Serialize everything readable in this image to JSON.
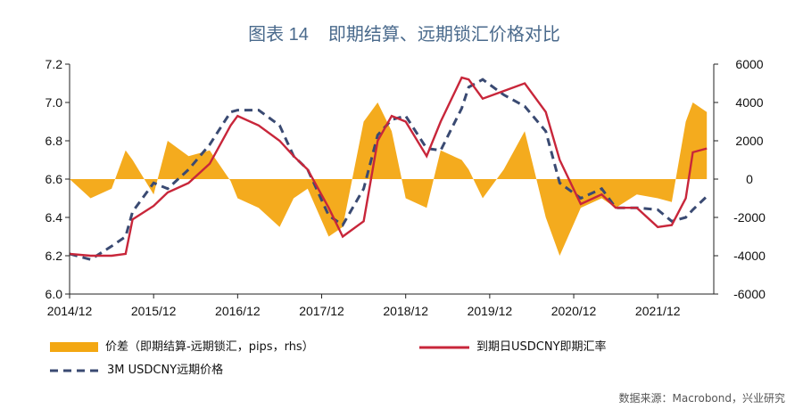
{
  "title": {
    "figure_label": "图表 14",
    "text": "即期结算、远期锁汇价格对比"
  },
  "legend": {
    "bar": "价差（即期结算-远期锁汇，pips，rhs）",
    "spot": "到期日USDCNY即期汇率",
    "forward": "3M USDCNY远期价格"
  },
  "source": "数据来源：Macrobond，兴业研究",
  "colors": {
    "bar": "#f3a712",
    "spot": "#c8263a",
    "forward": "#3a4a72",
    "axis": "#222222"
  },
  "chart_data": {
    "type": "line",
    "x_ticks": [
      "2014/12",
      "2015/12",
      "2016/12",
      "2017/12",
      "2018/12",
      "2019/12",
      "2020/12",
      "2021/12"
    ],
    "y_left": {
      "ticks": [
        "6.0",
        "6.2",
        "6.4",
        "6.6",
        "6.8",
        "7.0",
        "7.2"
      ],
      "ylim": [
        6.0,
        7.2
      ]
    },
    "y_right": {
      "ticks": [
        "-6000",
        "-4000",
        "-2000",
        "0",
        "2000",
        "4000",
        "6000"
      ],
      "ylim": [
        -6000,
        6000
      ]
    },
    "series": [
      {
        "name": "到期日USDCNY即期汇率",
        "axis": "left",
        "x": [
          "2014-12",
          "2015-03",
          "2015-06",
          "2015-08",
          "2015-09",
          "2015-12",
          "2016-02",
          "2016-05",
          "2016-08",
          "2016-11",
          "2016-12",
          "2017-03",
          "2017-06",
          "2017-08",
          "2017-10",
          "2018-01",
          "2018-03",
          "2018-06",
          "2018-08",
          "2018-10",
          "2018-12",
          "2019-03",
          "2019-05",
          "2019-08",
          "2019-09",
          "2019-11",
          "2020-02",
          "2020-05",
          "2020-08",
          "2020-10",
          "2021-01",
          "2021-04",
          "2021-06",
          "2021-09",
          "2021-12",
          "2022-02",
          "2022-04",
          "2022-05",
          "2022-07"
        ],
        "values": [
          6.21,
          6.2,
          6.2,
          6.21,
          6.39,
          6.46,
          6.53,
          6.58,
          6.68,
          6.88,
          6.93,
          6.88,
          6.8,
          6.72,
          6.65,
          6.45,
          6.3,
          6.38,
          6.8,
          6.93,
          6.9,
          6.72,
          6.9,
          7.13,
          7.12,
          7.02,
          7.06,
          7.1,
          6.95,
          6.7,
          6.47,
          6.52,
          6.45,
          6.45,
          6.35,
          6.36,
          6.5,
          6.74,
          6.76
        ]
      },
      {
        "name": "3M USDCNY远期价格",
        "axis": "left",
        "x": [
          "2014-12",
          "2015-03",
          "2015-06",
          "2015-08",
          "2015-09",
          "2015-12",
          "2016-02",
          "2016-05",
          "2016-08",
          "2016-11",
          "2016-12",
          "2017-03",
          "2017-06",
          "2017-08",
          "2017-10",
          "2018-01",
          "2018-03",
          "2018-06",
          "2018-08",
          "2018-10",
          "2018-12",
          "2019-03",
          "2019-05",
          "2019-08",
          "2019-09",
          "2019-11",
          "2020-02",
          "2020-05",
          "2020-08",
          "2020-10",
          "2021-01",
          "2021-04",
          "2021-06",
          "2021-09",
          "2021-12",
          "2022-02",
          "2022-04",
          "2022-05",
          "2022-07"
        ],
        "values": [
          6.21,
          6.18,
          6.25,
          6.3,
          6.43,
          6.58,
          6.55,
          6.65,
          6.78,
          6.95,
          6.96,
          6.96,
          6.88,
          6.72,
          6.65,
          6.41,
          6.36,
          6.55,
          6.83,
          6.91,
          6.93,
          6.76,
          6.75,
          6.97,
          7.08,
          7.12,
          7.04,
          6.98,
          6.85,
          6.58,
          6.5,
          6.55,
          6.45,
          6.45,
          6.44,
          6.38,
          6.4,
          6.44,
          6.51
        ]
      },
      {
        "name": "价差（即期结算-远期锁汇，pips，rhs）",
        "axis": "right",
        "x": [
          "2014-12",
          "2015-03",
          "2015-06",
          "2015-08",
          "2015-09",
          "2015-12",
          "2016-02",
          "2016-05",
          "2016-08",
          "2016-11",
          "2016-12",
          "2017-03",
          "2017-06",
          "2017-08",
          "2017-10",
          "2018-01",
          "2018-03",
          "2018-06",
          "2018-08",
          "2018-10",
          "2018-12",
          "2019-03",
          "2019-05",
          "2019-08",
          "2019-09",
          "2019-11",
          "2020-02",
          "2020-05",
          "2020-08",
          "2020-10",
          "2021-01",
          "2021-04",
          "2021-06",
          "2021-09",
          "2021-12",
          "2022-02",
          "2022-04",
          "2022-05",
          "2022-07"
        ],
        "values": [
          0,
          -1000,
          -500,
          1500,
          1000,
          -800,
          2000,
          1200,
          1500,
          -100,
          -1000,
          -1500,
          -2500,
          -1000,
          -500,
          -3000,
          -2500,
          3000,
          4000,
          2500,
          -1000,
          -1500,
          1500,
          1000,
          500,
          -1000,
          500,
          2500,
          -2000,
          -4000,
          -1500,
          -1000,
          -1500,
          -800,
          -1000,
          -1200,
          3000,
          4000,
          3500
        ]
      }
    ]
  }
}
